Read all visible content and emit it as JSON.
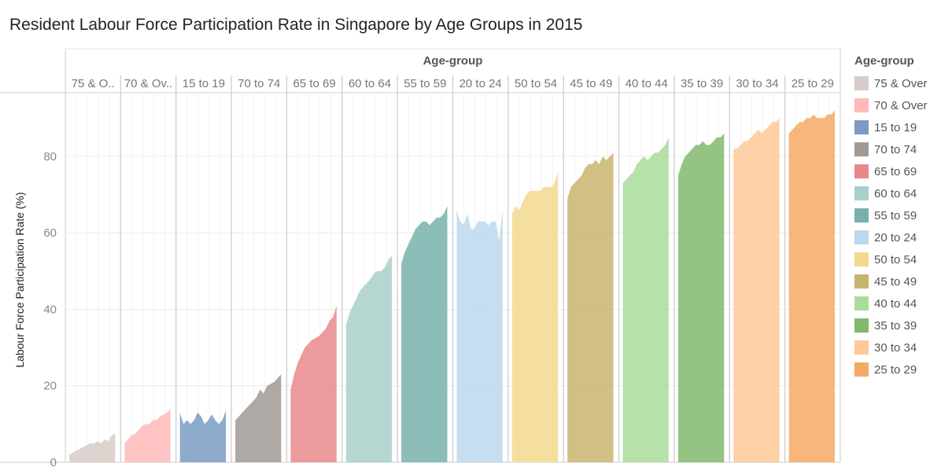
{
  "chart_data": {
    "type": "area",
    "title": "Resident Labour Force Participation Rate in Singapore by Age Groups in 2015",
    "ylabel": "Labour Force Participation Rate (%)",
    "column_header": "Age-group",
    "ylim": [
      0,
      95
    ],
    "yticks": [
      0,
      20,
      40,
      60,
      80
    ],
    "grid": true,
    "legend_title": "Age-group",
    "legend_position": "right",
    "panels": [
      {
        "label": "75 & O..",
        "name": "75 & Over",
        "color": "#d7ccc7",
        "values": [
          2,
          2.5,
          3,
          3.5,
          4,
          4.5,
          5,
          5,
          5.5,
          5,
          6,
          5.5,
          7,
          7.5
        ]
      },
      {
        "label": "70 & Ov..",
        "name": "70 & Over",
        "color": "#ffb9b9",
        "values": [
          5,
          6,
          7,
          7.5,
          8.5,
          9.5,
          10,
          10,
          11,
          11,
          12,
          12.5,
          13,
          14
        ]
      },
      {
        "label": "15 to 19",
        "name": "15 to 19",
        "color": "#7a9bc4",
        "values": [
          13,
          10,
          11,
          10,
          11,
          13,
          12,
          10,
          11,
          12.5,
          11,
          10,
          11,
          13.5
        ]
      },
      {
        "label": "70 to 74",
        "name": "70 to 74",
        "color": "#a19a95",
        "values": [
          11,
          12,
          13,
          14,
          15,
          16,
          17,
          19,
          18,
          20,
          20.5,
          21,
          22,
          23
        ]
      },
      {
        "label": "65 to 69",
        "name": "65 to 69",
        "color": "#e9888c",
        "values": [
          19,
          23,
          26,
          28,
          30,
          31,
          32,
          32.5,
          33,
          34,
          35,
          37,
          38,
          41
        ]
      },
      {
        "label": "60 to 64",
        "name": "60 to 64",
        "color": "#a9cfca",
        "values": [
          36,
          39,
          41,
          43,
          45,
          46,
          47,
          48,
          49.5,
          50,
          50,
          51,
          53,
          54
        ]
      },
      {
        "label": "55 to 59",
        "name": "55 to 59",
        "color": "#78b1ab",
        "values": [
          52,
          55,
          57,
          59,
          61,
          62,
          63,
          63,
          62,
          63,
          64,
          64,
          65,
          67
        ]
      },
      {
        "label": "20 to 24",
        "name": "20 to 24",
        "color": "#bbd8ee",
        "values": [
          66,
          63,
          62,
          65,
          61,
          61,
          63,
          63,
          63,
          62,
          63,
          63,
          58,
          66
        ]
      },
      {
        "label": "50 to 54",
        "name": "50 to 54",
        "color": "#f3d98e",
        "values": [
          65,
          67,
          66,
          68,
          70,
          71,
          71,
          71,
          71,
          72,
          72,
          72,
          73,
          76
        ]
      },
      {
        "label": "45 to 49",
        "name": "45 to 49",
        "color": "#c9b46e",
        "values": [
          69,
          72,
          73,
          74,
          75,
          77,
          78,
          78,
          79,
          78,
          80,
          79,
          80,
          81
        ]
      },
      {
        "label": "40 to 44",
        "name": "40 to 44",
        "color": "#a9dd9b",
        "values": [
          73,
          74,
          75,
          76,
          78,
          79,
          80,
          79,
          80,
          81,
          81,
          82,
          83,
          85
        ]
      },
      {
        "label": "35 to 39",
        "name": "35 to 39",
        "color": "#81b96f",
        "values": [
          75,
          78,
          80,
          81,
          82,
          83,
          83,
          84,
          83,
          83,
          84,
          85,
          85,
          86
        ]
      },
      {
        "label": "30 to 34",
        "name": "30 to 34",
        "color": "#ffc998",
        "values": [
          82,
          82,
          83,
          84,
          84,
          85,
          86,
          87,
          86,
          87,
          88,
          89,
          89,
          90
        ]
      },
      {
        "label": "25 to 29",
        "name": "25 to 29",
        "color": "#f4a965",
        "values": [
          86,
          87,
          88,
          89,
          89,
          90,
          90,
          91,
          90,
          90,
          90,
          91,
          91,
          92
        ]
      }
    ]
  }
}
